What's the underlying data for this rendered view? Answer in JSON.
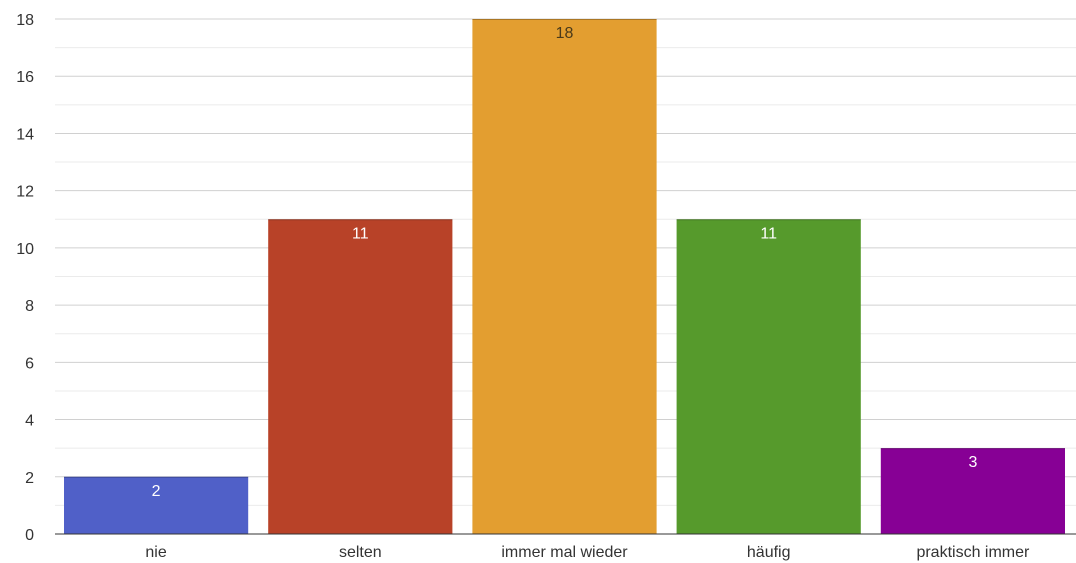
{
  "chart_data": {
    "type": "bar",
    "categories": [
      "nie",
      "selten",
      "immer mal wieder",
      "häufig",
      "praktisch immer"
    ],
    "values": [
      2,
      11,
      18,
      11,
      3
    ],
    "colors": [
      "#5060c8",
      "#b84228",
      "#e39e30",
      "#569a2c",
      "#870095"
    ],
    "ylim": [
      0,
      18
    ],
    "yticks": [
      0,
      2,
      4,
      6,
      8,
      10,
      12,
      14,
      16,
      18
    ],
    "grid": true,
    "data_labels": [
      "2",
      "11",
      "18",
      "11",
      "3"
    ]
  }
}
